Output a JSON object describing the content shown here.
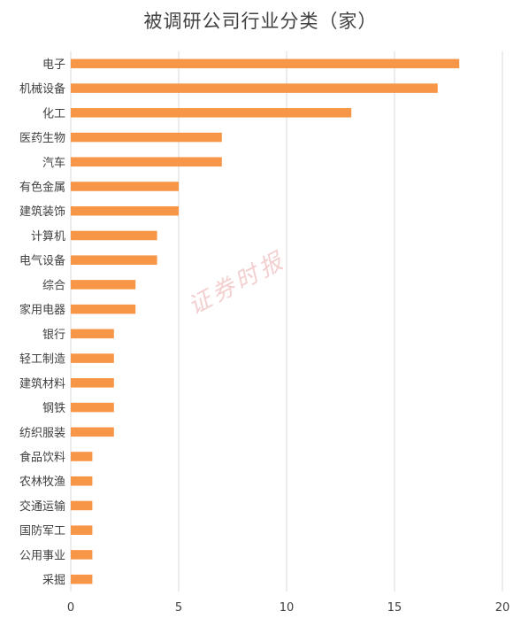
{
  "chart_data": {
    "type": "bar",
    "orientation": "horizontal",
    "title": "被调研公司行业分类（家）",
    "categories": [
      "电子",
      "机械设备",
      "化工",
      "医药生物",
      "汽车",
      "有色金属",
      "建筑装饰",
      "计算机",
      "电气设备",
      "综合",
      "家用电器",
      "银行",
      "轻工制造",
      "建筑材料",
      "钢铁",
      "纺织服装",
      "食品饮料",
      "农林牧渔",
      "交通运输",
      "国防军工",
      "公用事业",
      "采掘"
    ],
    "values": [
      18,
      17,
      13,
      7,
      7,
      5,
      5,
      4,
      4,
      3,
      3,
      2,
      2,
      2,
      2,
      2,
      1,
      1,
      1,
      1,
      1,
      1
    ],
    "xlim": [
      0,
      20
    ],
    "xticks": [
      0,
      5,
      10,
      15,
      20
    ],
    "bar_color": "#F79646",
    "grid": true,
    "xlabel": "",
    "ylabel": ""
  },
  "watermark": "证券时报"
}
